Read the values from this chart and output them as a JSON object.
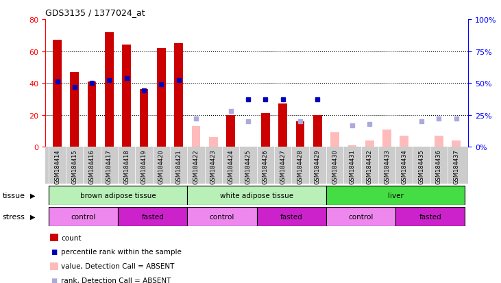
{
  "title": "GDS3135 / 1377024_at",
  "samples": [
    "GSM184414",
    "GSM184415",
    "GSM184416",
    "GSM184417",
    "GSM184418",
    "GSM184419",
    "GSM184420",
    "GSM184421",
    "GSM184422",
    "GSM184423",
    "GSM184424",
    "GSM184425",
    "GSM184426",
    "GSM184427",
    "GSM184428",
    "GSM184429",
    "GSM184430",
    "GSM184431",
    "GSM184432",
    "GSM184433",
    "GSM184434",
    "GSM184435",
    "GSM184436",
    "GSM184437"
  ],
  "count_present": [
    67,
    47,
    41,
    72,
    64,
    36,
    62,
    65,
    null,
    null,
    20,
    null,
    21,
    27,
    16,
    20,
    null,
    null,
    null,
    null,
    null,
    null,
    null,
    null
  ],
  "rank_present": [
    51,
    47,
    50,
    52,
    54,
    44,
    49,
    52,
    null,
    null,
    null,
    37,
    37,
    37,
    null,
    37,
    null,
    null,
    null,
    null,
    null,
    null,
    null,
    null
  ],
  "count_absent": [
    null,
    null,
    null,
    null,
    null,
    null,
    null,
    null,
    13,
    6,
    null,
    null,
    null,
    null,
    null,
    null,
    9,
    1,
    4,
    11,
    7,
    null,
    7,
    4
  ],
  "rank_absent": [
    null,
    null,
    null,
    null,
    null,
    null,
    null,
    null,
    22,
    null,
    28,
    20,
    null,
    null,
    20,
    null,
    null,
    17,
    18,
    null,
    null,
    20,
    22,
    22
  ],
  "ylim_left": [
    0,
    80
  ],
  "ylim_right": [
    0,
    100
  ],
  "yticks_left": [
    0,
    20,
    40,
    60,
    80
  ],
  "yticks_right": [
    0,
    25,
    50,
    75,
    100
  ],
  "grid_values": [
    20,
    40,
    60
  ],
  "tissue_groups": [
    {
      "label": "brown adipose tissue",
      "start": 0,
      "end": 7,
      "color": "#b8f0b8"
    },
    {
      "label": "white adipose tissue",
      "start": 8,
      "end": 15,
      "color": "#b8f0b8"
    },
    {
      "label": "liver",
      "start": 16,
      "end": 23,
      "color": "#44dd44"
    }
  ],
  "stress_groups": [
    {
      "label": "control",
      "start": 0,
      "end": 3,
      "color": "#ee88ee"
    },
    {
      "label": "fasted",
      "start": 4,
      "end": 7,
      "color": "#cc22cc"
    },
    {
      "label": "control",
      "start": 8,
      "end": 11,
      "color": "#ee88ee"
    },
    {
      "label": "fasted",
      "start": 12,
      "end": 15,
      "color": "#cc22cc"
    },
    {
      "label": "control",
      "start": 16,
      "end": 19,
      "color": "#ee88ee"
    },
    {
      "label": "fasted",
      "start": 20,
      "end": 23,
      "color": "#cc22cc"
    }
  ],
  "bar_color_present": "#cc0000",
  "bar_color_absent": "#ffbbbb",
  "rank_color_present": "#0000bb",
  "rank_color_absent": "#aaaadd",
  "xtick_bg": "#cccccc",
  "plot_bg": "#ffffff",
  "bar_width": 0.5
}
